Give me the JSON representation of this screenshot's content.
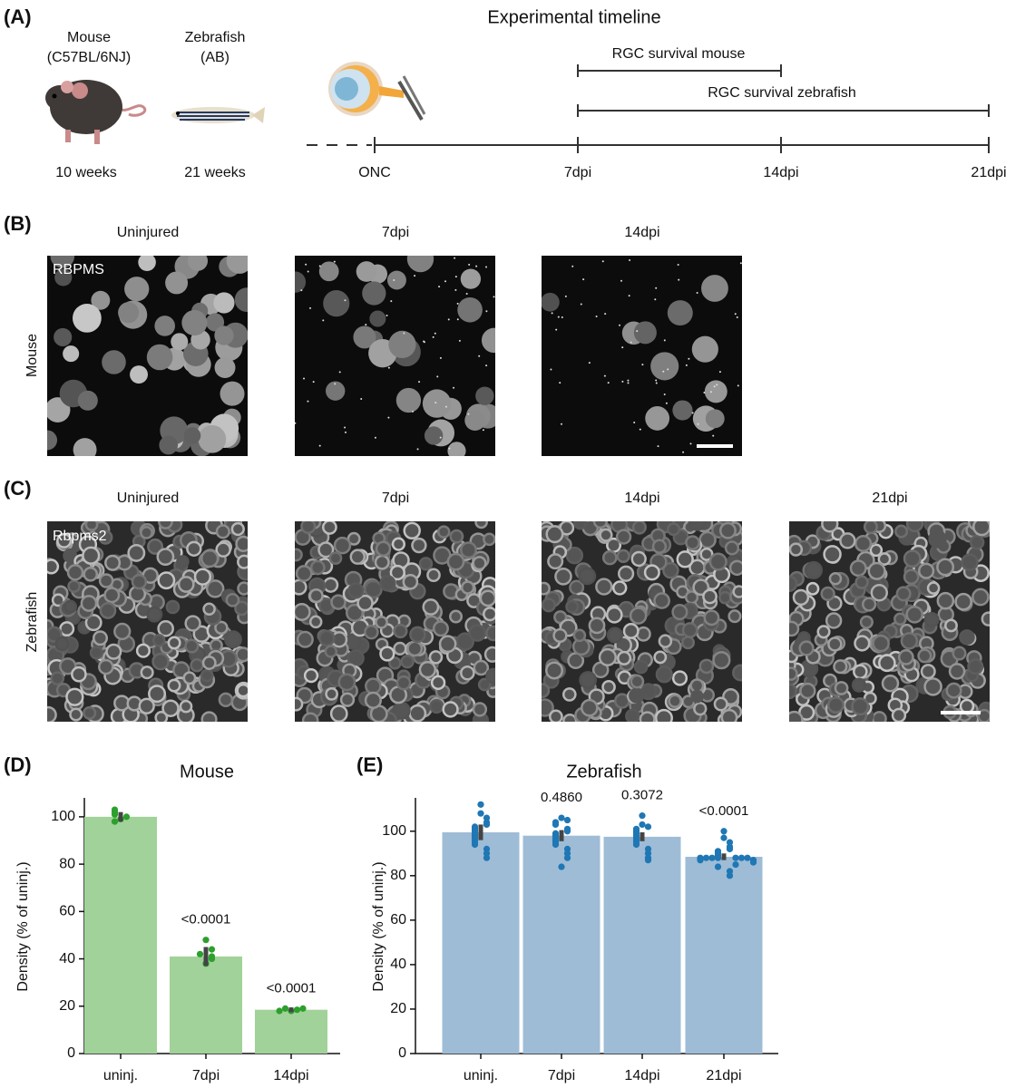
{
  "panels": [
    "(A)",
    "(B)",
    "(C)",
    "(D)",
    "(E)"
  ],
  "panel_a": {
    "title": "Experimental timeline",
    "animals": [
      {
        "name": "Mouse",
        "strain": "(C57BL/6NJ)",
        "age": "10 weeks"
      },
      {
        "name": "Zebrafish",
        "strain": "(AB)",
        "age": "21 weeks"
      }
    ],
    "timeline": [
      "ONC",
      "7dpi",
      "14dpi",
      "21dpi"
    ],
    "brackets": [
      "RGC survival mouse",
      "RGC survival zebrafish"
    ]
  },
  "panel_b": {
    "row": "Mouse",
    "stain": "RBPMS",
    "columns": [
      "Uninjured",
      "7dpi",
      "14dpi"
    ]
  },
  "panel_c": {
    "row": "Zebrafish",
    "stain": "Rbpms2",
    "columns": [
      "Uninjured",
      "7dpi",
      "14dpi",
      "21dpi"
    ]
  },
  "chart_data": [
    {
      "type": "bar",
      "title": "Mouse",
      "ylabel": "Density (% of uninj.)",
      "categories": [
        "uninj.",
        "7dpi",
        "14dpi"
      ],
      "values": [
        100,
        41,
        18.5
      ],
      "errors": [
        2,
        4,
        1
      ],
      "points": [
        [
          99,
          100,
          101,
          102,
          103,
          98
        ],
        [
          38,
          40,
          41,
          42,
          44,
          48
        ],
        [
          18,
          18.5,
          19,
          19,
          18
        ]
      ],
      "annotations": [
        null,
        "<0.0001",
        "<0.0001"
      ],
      "ylim": [
        0,
        108
      ],
      "yticks": [
        0,
        20,
        40,
        60,
        80,
        100
      ],
      "color": "#a1d299",
      "point_color": "#2ca02c"
    },
    {
      "type": "bar",
      "title": "Zebrafish",
      "ylabel": "Density (% of uninj.)",
      "categories": [
        "uninj.",
        "7dpi",
        "14dpi",
        "21dpi"
      ],
      "values": [
        99.5,
        98,
        97.5,
        88.5
      ],
      "errors": [
        3.5,
        2.5,
        2,
        1.5
      ],
      "points": [
        [
          112,
          108,
          106,
          104,
          103,
          102,
          101,
          100,
          99,
          98,
          97,
          96,
          95,
          94,
          92,
          90,
          88
        ],
        [
          106,
          105,
          104,
          103,
          101,
          100,
          99,
          98,
          97,
          96,
          95,
          94,
          92,
          90,
          88,
          84
        ],
        [
          107,
          103,
          102,
          101,
          100,
          99,
          98,
          97,
          96,
          95,
          94,
          92,
          90,
          88,
          87
        ],
        [
          100,
          97,
          95,
          93,
          92,
          91,
          90,
          89,
          88,
          88,
          88,
          88,
          88,
          88,
          88,
          87,
          87,
          86,
          85,
          84,
          82,
          80
        ]
      ],
      "annotations": [
        null,
        "0.4860",
        "0.3072",
        "<0.0001"
      ],
      "ylim": [
        0,
        115
      ],
      "yticks": [
        0,
        20,
        40,
        60,
        80,
        100
      ],
      "color": "#9ebcd6",
      "point_color": "#1f77b4"
    }
  ]
}
